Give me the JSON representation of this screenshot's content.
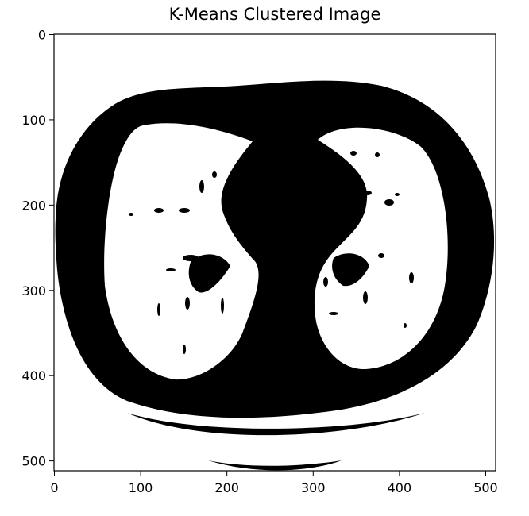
{
  "title": "K-Means Clustered Image",
  "axes": {
    "x_ticks": [
      "0",
      "100",
      "200",
      "300",
      "400",
      "500"
    ],
    "y_ticks": [
      "0",
      "100",
      "200",
      "300",
      "400",
      "500"
    ],
    "image_size": [
      512,
      512
    ]
  },
  "image": {
    "description_key": "binary-ct-slice",
    "colors": {
      "foreground": "#000000",
      "background": "#ffffff"
    }
  }
}
